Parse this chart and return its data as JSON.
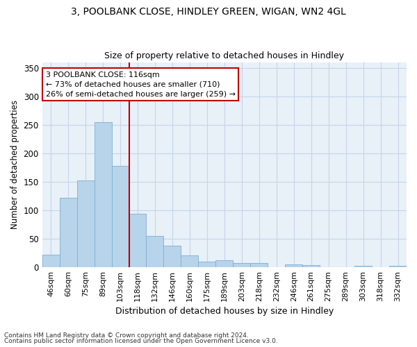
{
  "title1": "3, POOLBANK CLOSE, HINDLEY GREEN, WIGAN, WN2 4GL",
  "title2": "Size of property relative to detached houses in Hindley",
  "xlabel": "Distribution of detached houses by size in Hindley",
  "ylabel": "Number of detached properties",
  "footnote1": "Contains HM Land Registry data © Crown copyright and database right 2024.",
  "footnote2": "Contains public sector information licensed under the Open Government Licence v3.0.",
  "bar_labels": [
    "46sqm",
    "60sqm",
    "75sqm",
    "89sqm",
    "103sqm",
    "118sqm",
    "132sqm",
    "146sqm",
    "160sqm",
    "175sqm",
    "189sqm",
    "203sqm",
    "218sqm",
    "232sqm",
    "246sqm",
    "261sqm",
    "275sqm",
    "289sqm",
    "303sqm",
    "318sqm",
    "332sqm"
  ],
  "bar_values": [
    22,
    122,
    152,
    255,
    178,
    94,
    55,
    38,
    20,
    10,
    12,
    7,
    7,
    0,
    5,
    4,
    0,
    0,
    2,
    0,
    2
  ],
  "bar_color": "#b8d4ea",
  "bar_edge_color": "#7aafd4",
  "grid_color": "#c5d5e8",
  "bg_color": "#e8f0f8",
  "vline_color": "#c00000",
  "annotation_line1": "3 POOLBANK CLOSE: 116sqm",
  "annotation_line2": "← 73% of detached houses are smaller (710)",
  "annotation_line3": "26% of semi-detached houses are larger (259) →",
  "annotation_box_color": "#ffffff",
  "annotation_box_edge": "#c00000",
  "ylim": [
    0,
    360
  ],
  "yticks": [
    0,
    50,
    100,
    150,
    200,
    250,
    300,
    350
  ]
}
